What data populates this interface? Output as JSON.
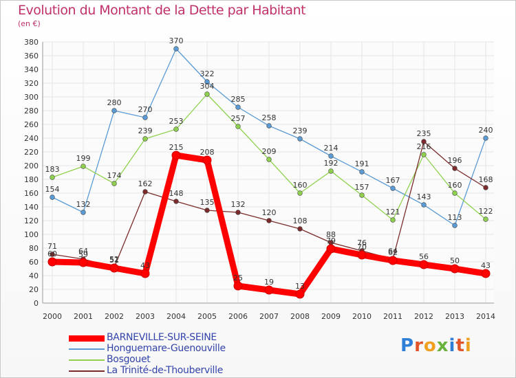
{
  "chart_data": {
    "type": "line",
    "title": "Evolution du Montant de la Dette par Habitant",
    "subtitle": "(en €)",
    "categories": [
      "2000",
      "2001",
      "2002",
      "2003",
      "2004",
      "2005",
      "2006",
      "2007",
      "2008",
      "2009",
      "2010",
      "2011",
      "2012",
      "2013",
      "2014"
    ],
    "ylim": [
      0,
      380
    ],
    "yticks": [
      0,
      20,
      40,
      60,
      80,
      100,
      120,
      140,
      160,
      180,
      200,
      220,
      240,
      260,
      280,
      300,
      320,
      340,
      360,
      380
    ],
    "grid": true,
    "legend_position": "bottom-left",
    "series": [
      {
        "name": "BARNEVILLE-SUR-SEINE",
        "color": "#ff0000",
        "values": [
          60,
          59,
          51,
          43,
          215,
          208,
          25,
          19,
          13,
          79,
          70,
          62,
          56,
          50,
          43
        ]
      },
      {
        "name": "Honguemare-Guenouville",
        "color": "#5b9bd5",
        "values": [
          154,
          132,
          280,
          270,
          370,
          322,
          285,
          258,
          239,
          214,
          191,
          167,
          143,
          113,
          240
        ]
      },
      {
        "name": "Bosgouet",
        "color": "#8fd14f",
        "values": [
          183,
          199,
          174,
          239,
          253,
          304,
          257,
          209,
          160,
          192,
          157,
          121,
          216,
          160,
          122
        ]
      },
      {
        "name": "La Trinité-de-Thouberville",
        "color": "#7b2b2b",
        "values": [
          71,
          64,
          52,
          162,
          148,
          135,
          132,
          120,
          108,
          88,
          76,
          64,
          235,
          196,
          168
        ]
      }
    ]
  },
  "logo": {
    "text": "Proxiti"
  }
}
